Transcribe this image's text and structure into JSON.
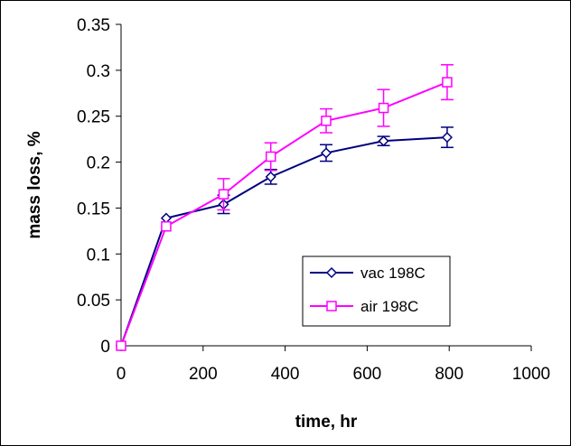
{
  "chart_data": {
    "type": "line",
    "title": "",
    "xlabel": "time, hr",
    "ylabel": "mass loss, %",
    "xlim": [
      0,
      1000
    ],
    "ylim": [
      0,
      0.35
    ],
    "xticks": [
      "0",
      "200",
      "400",
      "600",
      "800",
      "1000"
    ],
    "yticks": [
      "0",
      "0.05",
      "0.1",
      "0.15",
      "0.2",
      "0.25",
      "0.3",
      "0.35"
    ],
    "grid": false,
    "legend_position": "lower-right",
    "series": [
      {
        "name": "vac 198C",
        "color": "#000080",
        "marker": "diamond",
        "x": [
          0,
          110,
          250,
          365,
          500,
          640,
          795
        ],
        "y": [
          0,
          0.139,
          0.154,
          0.184,
          0.21,
          0.223,
          0.227
        ],
        "err": [
          0,
          0,
          0.01,
          0.008,
          0.009,
          0.005,
          0.011
        ]
      },
      {
        "name": "air 198C",
        "color": "#ff00ff",
        "marker": "square",
        "x": [
          0,
          110,
          250,
          365,
          500,
          640,
          795
        ],
        "y": [
          0,
          0.13,
          0.165,
          0.206,
          0.245,
          0.259,
          0.287
        ],
        "err": [
          0,
          0,
          0.017,
          0.015,
          0.013,
          0.02,
          0.019
        ]
      }
    ]
  }
}
